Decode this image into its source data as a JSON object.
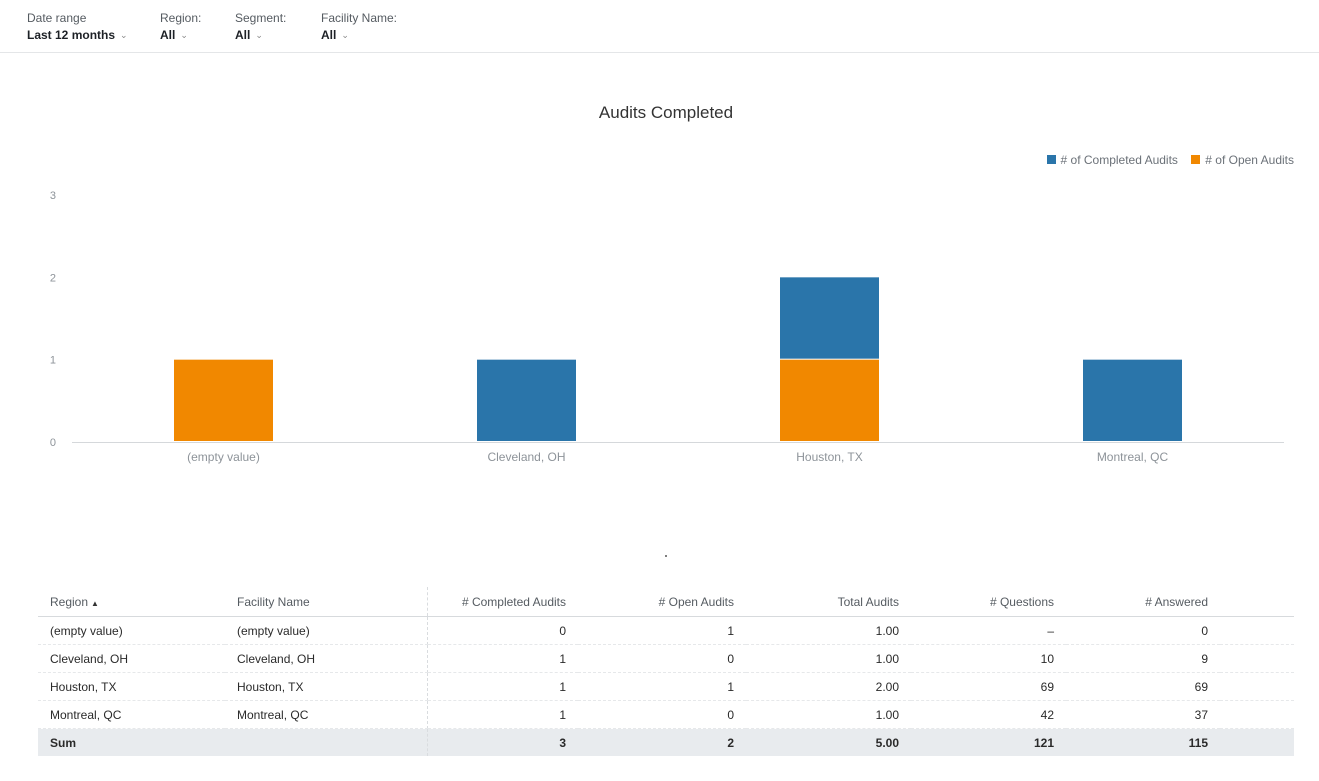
{
  "filters": [
    {
      "label": "Date range",
      "value": "Last 12 months"
    },
    {
      "label": "Region:",
      "value": "All"
    },
    {
      "label": "Segment:",
      "value": "All"
    },
    {
      "label": "Facility Name:",
      "value": "All"
    }
  ],
  "legend": [
    {
      "name": "# of Completed Audits",
      "color": "#2a75aa"
    },
    {
      "name": "# of Open Audits",
      "color": "#f18800"
    }
  ],
  "chart_data": {
    "type": "bar",
    "stacked": true,
    "title": "Audits Completed",
    "categories": [
      "(empty value)",
      "Cleveland, OH",
      "Houston, TX",
      "Montreal, QC"
    ],
    "series": [
      {
        "name": "# of Completed Audits",
        "color": "#2a75aa",
        "values": [
          0,
          1,
          1,
          1
        ]
      },
      {
        "name": "# of Open Audits",
        "color": "#f18800",
        "values": [
          1,
          0,
          1,
          0
        ]
      }
    ],
    "ylim": [
      0,
      3
    ],
    "yticks": [
      "0",
      "1",
      "2",
      "3"
    ],
    "grid": false,
    "legend_position": "top-right"
  },
  "table": {
    "headers": [
      "Region",
      "Facility Name",
      "# Completed Audits",
      "# Open Audits",
      "Total Audits",
      "# Questions",
      "# Answered"
    ],
    "sort_indicator": "▲",
    "rows": [
      [
        "(empty value)",
        "(empty value)",
        "0",
        "1",
        "1.00",
        "–",
        "0"
      ],
      [
        "Cleveland, OH",
        "Cleveland, OH",
        "1",
        "0",
        "1.00",
        "10",
        "9"
      ],
      [
        "Houston, TX",
        "Houston, TX",
        "1",
        "1",
        "2.00",
        "69",
        "69"
      ],
      [
        "Montreal, QC",
        "Montreal, QC",
        "1",
        "0",
        "1.00",
        "42",
        "37"
      ]
    ],
    "sum": [
      "Sum",
      "",
      "3",
      "2",
      "5.00",
      "121",
      "115"
    ]
  }
}
